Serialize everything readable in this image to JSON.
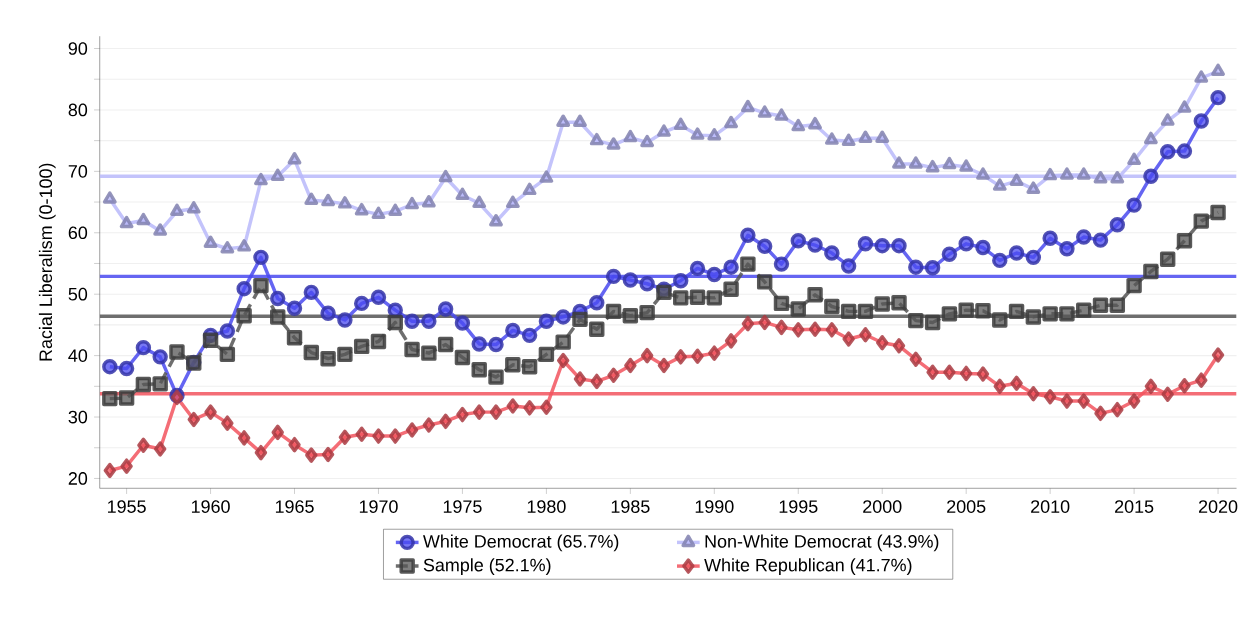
{
  "chart_data": {
    "type": "line",
    "ylabel": "Racial Liberalism (0-100)",
    "x": [
      1954,
      1955,
      1956,
      1957,
      1958,
      1959,
      1960,
      1961,
      1962,
      1963,
      1964,
      1965,
      1966,
      1967,
      1968,
      1969,
      1970,
      1971,
      1972,
      1973,
      1974,
      1975,
      1976,
      1977,
      1978,
      1979,
      1980,
      1981,
      1982,
      1983,
      1984,
      1985,
      1986,
      1987,
      1988,
      1989,
      1990,
      1991,
      1992,
      1993,
      1994,
      1995,
      1996,
      1997,
      1998,
      1999,
      2000,
      2001,
      2002,
      2003,
      2004,
      2005,
      2006,
      2007,
      2008,
      2009,
      2010,
      2011,
      2012,
      2013,
      2014,
      2015,
      2016,
      2017,
      2018,
      2019,
      2020
    ],
    "series": [
      {
        "name": "White Democrat (65.7%)",
        "color": "#4a4af0",
        "marker": "circle",
        "line_style": "solid",
        "values": [
          38.2,
          37.9,
          41.3,
          39.8,
          33.5,
          38.9,
          43.3,
          44.0,
          50.9,
          56.0,
          49.3,
          47.7,
          50.3,
          46.9,
          45.8,
          48.5,
          49.5,
          47.4,
          45.6,
          45.6,
          47.6,
          45.3,
          41.9,
          41.8,
          44.1,
          43.3,
          45.6,
          46.3,
          47.2,
          48.6,
          52.9,
          52.3,
          51.7,
          50.8,
          52.2,
          54.2,
          53.2,
          54.4,
          59.6,
          57.8,
          54.9,
          58.7,
          58.0,
          56.7,
          54.6,
          58.2,
          57.9,
          57.9,
          54.4,
          54.3,
          56.5,
          58.2,
          57.6,
          55.5,
          56.7,
          56.0,
          59.1,
          57.4,
          59.3,
          58.8,
          61.3,
          64.5,
          69.2,
          73.2,
          73.3,
          78.2,
          82.0
        ]
      },
      {
        "name": "Non-White Democrat (43.9%)",
        "color": "#b9b9fa",
        "marker": "triangle",
        "line_style": "solid",
        "values": [
          65.5,
          61.5,
          62.0,
          60.3,
          63.5,
          63.9,
          58.3,
          57.4,
          57.7,
          68.5,
          69.2,
          71.9,
          65.3,
          65.1,
          64.7,
          63.6,
          63.0,
          63.5,
          64.6,
          64.9,
          69.0,
          66.1,
          64.8,
          61.8,
          64.8,
          66.9,
          68.9,
          78.0,
          78.0,
          75.0,
          74.3,
          75.5,
          74.7,
          76.4,
          77.5,
          75.9,
          75.8,
          77.8,
          80.4,
          79.5,
          79.0,
          77.3,
          77.6,
          75.1,
          74.9,
          75.4,
          75.4,
          71.2,
          71.2,
          70.6,
          71.1,
          70.7,
          69.4,
          67.6,
          68.4,
          67.1,
          69.3,
          69.4,
          69.4,
          68.8,
          68.8,
          71.8,
          75.2,
          78.2,
          80.3,
          85.2,
          86.3
        ]
      },
      {
        "name": "Sample (52.1%)",
        "color": "#555555",
        "marker": "square",
        "line_style": "dashed",
        "values": [
          33.0,
          33.1,
          35.3,
          35.4,
          40.6,
          38.8,
          42.5,
          40.2,
          46.5,
          51.4,
          46.3,
          42.9,
          40.5,
          39.5,
          40.2,
          41.5,
          42.3,
          45.4,
          41.0,
          40.4,
          41.8,
          39.7,
          37.7,
          36.5,
          38.5,
          38.2,
          40.2,
          42.2,
          45.9,
          44.3,
          47.2,
          46.5,
          47.0,
          50.3,
          49.4,
          49.5,
          49.4,
          50.8,
          54.9,
          52.0,
          48.5,
          47.6,
          49.9,
          48.0,
          47.2,
          47.2,
          48.4,
          48.6,
          45.7,
          45.4,
          46.8,
          47.4,
          47.3,
          45.8,
          47.2,
          46.3,
          46.8,
          46.8,
          47.4,
          48.2,
          48.2,
          51.4,
          53.7,
          55.7,
          58.7,
          61.9,
          63.3
        ]
      },
      {
        "name": "White Republican (41.7%)",
        "color": "#f2545e",
        "marker": "diamond",
        "line_style": "solid",
        "values": [
          21.3,
          22.0,
          25.4,
          24.8,
          33.2,
          29.6,
          30.8,
          29.0,
          26.6,
          24.2,
          27.5,
          25.5,
          23.8,
          23.9,
          26.7,
          27.2,
          26.9,
          26.9,
          27.9,
          28.7,
          29.3,
          30.4,
          30.8,
          30.8,
          31.8,
          31.5,
          31.6,
          39.2,
          36.2,
          35.8,
          36.8,
          38.4,
          40.0,
          38.4,
          39.8,
          39.9,
          40.4,
          42.4,
          45.2,
          45.4,
          44.6,
          44.2,
          44.3,
          44.2,
          42.7,
          43.4,
          42.1,
          41.6,
          39.4,
          37.3,
          37.3,
          37.1,
          37.0,
          35.0,
          35.5,
          33.8,
          33.3,
          32.6,
          32.6,
          30.6,
          31.2,
          32.6,
          35.0,
          33.7,
          35.1,
          36.0,
          40.1
        ]
      }
    ],
    "ref_lines": [
      {
        "axis": "y",
        "value": 52.9,
        "color": "#4a4af0"
      },
      {
        "axis": "y",
        "value": 69.2,
        "color": "#b9b9fa"
      },
      {
        "axis": "y",
        "value": 46.4,
        "color": "#555555"
      },
      {
        "axis": "y",
        "value": 33.8,
        "color": "#f2545e"
      }
    ],
    "xlim": [
      1953.4,
      2021.1
    ],
    "xticks": [
      1955,
      1960,
      1965,
      1970,
      1975,
      1980,
      1985,
      1990,
      1995,
      2000,
      2005,
      2010,
      2015,
      2020
    ],
    "ylim": [
      18.4,
      92
    ],
    "yticks": [
      20,
      {
        "value": 25,
        "label": null
      },
      30,
      {
        "value": 35,
        "label": null
      },
      40,
      {
        "value": 45,
        "label": null
      },
      50,
      {
        "value": 55,
        "label": null
      },
      60,
      {
        "value": 65,
        "label": null
      },
      70,
      {
        "value": 75,
        "label": null
      },
      80,
      {
        "value": 85,
        "label": null
      },
      90
    ],
    "grid": "y",
    "legend": "bottom"
  }
}
